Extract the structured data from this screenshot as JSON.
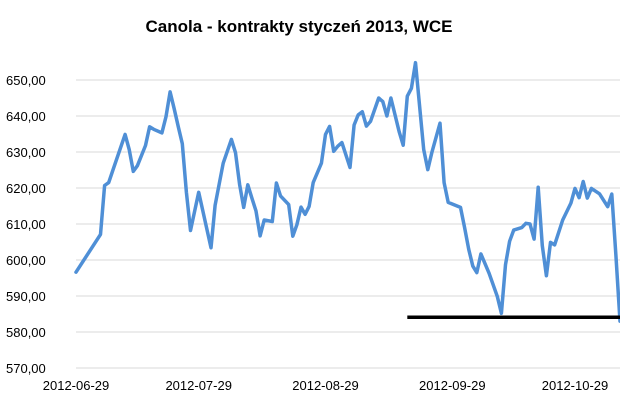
{
  "chart_data": {
    "type": "line",
    "title": "Canola - kontrakty styczeń 2013, WCE",
    "xlabel": "",
    "ylabel": "",
    "ylim": [
      570,
      655
    ],
    "yticks": [
      570,
      580,
      590,
      600,
      610,
      620,
      630,
      640,
      650
    ],
    "ytick_labels": [
      "570,00",
      "580,00",
      "590,00",
      "600,00",
      "610,00",
      "620,00",
      "630,00",
      "640,00",
      "650,00"
    ],
    "xlim": [
      "2012-06-29",
      "2012-11-09"
    ],
    "xticks": [
      "2012-06-29",
      "2012-07-29",
      "2012-08-29",
      "2012-09-29",
      "2012-10-29"
    ],
    "grid": true,
    "colors": {
      "line": "#4f8fd6",
      "support_line": "#000000",
      "grid": "#d9d9d9"
    },
    "series": [
      {
        "x": [
          "2012-06-29",
          "2012-07-05",
          "2012-07-06",
          "2012-07-07",
          "2012-07-08",
          "2012-07-11",
          "2012-07-12",
          "2012-07-13",
          "2012-07-14",
          "2012-07-16",
          "2012-07-17",
          "2012-07-18",
          "2012-07-20",
          "2012-07-21",
          "2012-07-22",
          "2012-07-23",
          "2012-07-24",
          "2012-07-25",
          "2012-07-26",
          "2012-07-27",
          "2012-07-29",
          "2012-08-01",
          "2012-08-02",
          "2012-08-04",
          "2012-08-06",
          "2012-08-07",
          "2012-08-08",
          "2012-08-09",
          "2012-08-10",
          "2012-08-11",
          "2012-08-12",
          "2012-08-13",
          "2012-08-14",
          "2012-08-16",
          "2012-08-17",
          "2012-08-18",
          "2012-08-20",
          "2012-08-21",
          "2012-08-22",
          "2012-08-23",
          "2012-08-24",
          "2012-08-25",
          "2012-08-26",
          "2012-08-28",
          "2012-08-29",
          "2012-08-30",
          "2012-08-31",
          "2012-09-01",
          "2012-09-02",
          "2012-09-04",
          "2012-09-05",
          "2012-09-06",
          "2012-09-07",
          "2012-09-08",
          "2012-09-09",
          "2012-09-11",
          "2012-09-12",
          "2012-09-13",
          "2012-09-14",
          "2012-09-16",
          "2012-09-17",
          "2012-09-18",
          "2012-09-19",
          "2012-09-20",
          "2012-09-22",
          "2012-09-23",
          "2012-09-24",
          "2012-09-26",
          "2012-09-27",
          "2012-09-28",
          "2012-10-01",
          "2012-10-02",
          "2012-10-03",
          "2012-10-04",
          "2012-10-05",
          "2012-10-06",
          "2012-10-08",
          "2012-10-10",
          "2012-10-11",
          "2012-10-12",
          "2012-10-13",
          "2012-10-14",
          "2012-10-16",
          "2012-10-17",
          "2012-10-18",
          "2012-10-19",
          "2012-10-20",
          "2012-10-21",
          "2012-10-22",
          "2012-10-23",
          "2012-10-24",
          "2012-10-26",
          "2012-10-28",
          "2012-10-29",
          "2012-10-30",
          "2012-10-31",
          "2012-11-01",
          "2012-11-02",
          "2012-11-04",
          "2012-11-06",
          "2012-11-07",
          "2012-11-08",
          "2012-11-09"
        ],
        "values": [
          596.6,
          607.1,
          620.7,
          621.5,
          624.9,
          634.9,
          630.7,
          624.6,
          626.2,
          631.8,
          637.0,
          636.3,
          635.3,
          639.8,
          646.7,
          642.0,
          637.0,
          632.3,
          618.8,
          608.2,
          618.8,
          603.4,
          615.2,
          626.9,
          633.5,
          629.8,
          621.0,
          614.6,
          620.9,
          617.2,
          613.6,
          606.7,
          611.1,
          610.7,
          621.4,
          617.8,
          615.4,
          606.6,
          609.8,
          614.7,
          612.7,
          614.9,
          621.5,
          626.9,
          634.9,
          637.1,
          630.2,
          631.6,
          632.6,
          625.7,
          637.5,
          640.3,
          641.2,
          637.2,
          638.5,
          645.0,
          644.0,
          640.0,
          645.0,
          635.7,
          631.9,
          645.5,
          647.7,
          654.8,
          630.7,
          625.1,
          629.8,
          638.0,
          621.5,
          616.0,
          614.6,
          609.0,
          603.0,
          598.3,
          596.5,
          601.7,
          596.3,
          589.9,
          585.2,
          598.7,
          605.2,
          608.3,
          609.0,
          610.2,
          610.0,
          605.8,
          620.2,
          604.0,
          595.6,
          604.9,
          604.2,
          611.1,
          615.8,
          619.9,
          617.3,
          621.8,
          617.2,
          619.9,
          618.4,
          614.8,
          618.3,
          601.3,
          583.0
        ]
      }
    ],
    "support_level": 584.1,
    "support_x_range": [
      "2012-09-18",
      "2012-11-09"
    ]
  }
}
